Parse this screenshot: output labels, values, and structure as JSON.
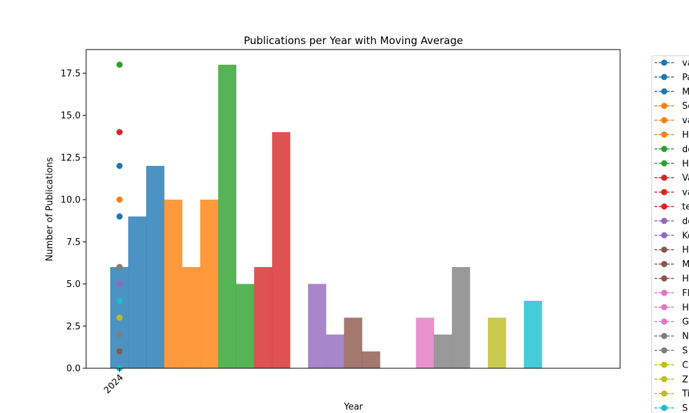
{
  "chart_data": {
    "type": "bar",
    "title": "Publications per Year with Moving Average",
    "xlabel": "Year",
    "ylabel": "Number of Publications",
    "categories": [
      "2024"
    ],
    "ylim": [
      0,
      18.9
    ],
    "yticks": [
      "0.0",
      "2.5",
      "5.0",
      "7.5",
      "10.0",
      "12.5",
      "15.0",
      "17.5"
    ],
    "grid": false,
    "legend_position": "right (outside, clipped)",
    "bars": [
      {
        "color": "#1f77b4",
        "value": 6
      },
      {
        "color": "#1f77b4",
        "value": 9
      },
      {
        "color": "#1f77b4",
        "value": 12
      },
      {
        "color": "#ff7f0e",
        "value": 10
      },
      {
        "color": "#ff7f0e",
        "value": 6
      },
      {
        "color": "#ff7f0e",
        "value": 10
      },
      {
        "color": "#2ca02c",
        "value": 18
      },
      {
        "color": "#2ca02c",
        "value": 5
      },
      {
        "color": "#d62728",
        "value": 6
      },
      {
        "color": "#d62728",
        "value": 14
      },
      {
        "color": "#d62728",
        "value": 0
      },
      {
        "color": "#9467bd",
        "value": 5
      },
      {
        "color": "#9467bd",
        "value": 2
      },
      {
        "color": "#8c564b",
        "value": 3
      },
      {
        "color": "#8c564b",
        "value": 1
      },
      {
        "color": "#8c564b",
        "value": 0
      },
      {
        "color": "#e377c2",
        "value": 0
      },
      {
        "color": "#e377c2",
        "value": 3
      },
      {
        "color": "#7f7f7f",
        "value": 2
      },
      {
        "color": "#7f7f7f",
        "value": 6
      },
      {
        "color": "#bcbd22",
        "value": 0
      },
      {
        "color": "#bcbd22",
        "value": 3
      },
      {
        "color": "#17becf",
        "value": 0
      },
      {
        "color": "#17becf",
        "value": 4
      }
    ],
    "points": [
      {
        "color": "#2ca02c",
        "value": 18
      },
      {
        "color": "#d62728",
        "value": 14
      },
      {
        "color": "#1f77b4",
        "value": 12
      },
      {
        "color": "#ff7f0e",
        "value": 10
      },
      {
        "color": "#1f77b4",
        "value": 9
      },
      {
        "color": "#8c564b",
        "value": 6
      },
      {
        "color": "#7f7f7f",
        "value": 6
      },
      {
        "color": "#9467bd",
        "value": 5
      },
      {
        "color": "#17becf",
        "value": 4
      },
      {
        "color": "#bcbd22",
        "value": 3
      },
      {
        "color": "#7f7f7f",
        "value": 2
      },
      {
        "color": "#8c564b",
        "value": 1
      },
      {
        "color": "#17becf",
        "value": 0
      }
    ],
    "legend": [
      {
        "label": "va",
        "color": "#1f77b4"
      },
      {
        "label": "Pa",
        "color": "#1f77b4"
      },
      {
        "label": "M",
        "color": "#1f77b4"
      },
      {
        "label": "Sc",
        "color": "#ff7f0e"
      },
      {
        "label": "va",
        "color": "#ff7f0e"
      },
      {
        "label": "H",
        "color": "#ff7f0e"
      },
      {
        "label": "de",
        "color": "#2ca02c"
      },
      {
        "label": "H",
        "color": "#2ca02c"
      },
      {
        "label": "Va",
        "color": "#d62728"
      },
      {
        "label": "va",
        "color": "#d62728"
      },
      {
        "label": "te",
        "color": "#d62728"
      },
      {
        "label": "de",
        "color": "#9467bd"
      },
      {
        "label": "Ko",
        "color": "#9467bd"
      },
      {
        "label": "H",
        "color": "#8c564b"
      },
      {
        "label": "M",
        "color": "#8c564b"
      },
      {
        "label": "H",
        "color": "#8c564b"
      },
      {
        "label": "Fl",
        "color": "#e377c2"
      },
      {
        "label": "H",
        "color": "#e377c2"
      },
      {
        "label": "G",
        "color": "#e377c2"
      },
      {
        "label": "N",
        "color": "#7f7f7f"
      },
      {
        "label": "S",
        "color": "#7f7f7f"
      },
      {
        "label": "C",
        "color": "#bcbd22"
      },
      {
        "label": "Z",
        "color": "#bcbd22"
      },
      {
        "label": "Ti",
        "color": "#bcbd22"
      },
      {
        "label": "S",
        "color": "#17becf"
      }
    ]
  }
}
